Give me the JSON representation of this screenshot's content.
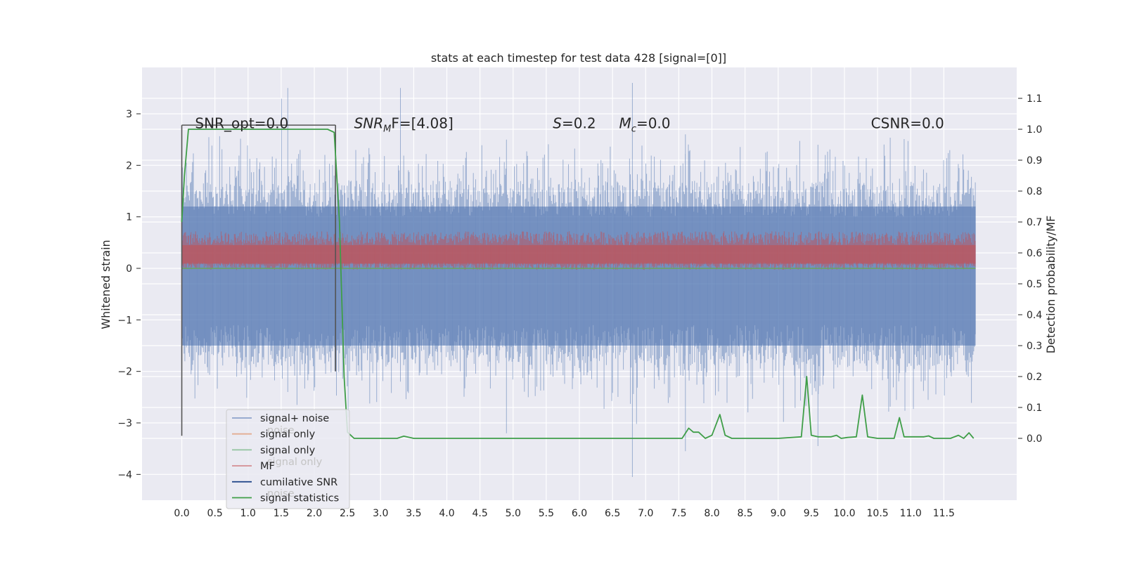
{
  "chart_data": {
    "type": "line",
    "title": "stats at each timestep for test data 428 [signal=[0]]",
    "xlabel": "",
    "ylabel": "Whitened strain",
    "ylabel_right": "Detection probability/MF",
    "xlim": [
      -0.6,
      12.6
    ],
    "ylim": [
      -4.5,
      3.9
    ],
    "ylim_right": [
      -0.2,
      1.2
    ],
    "x_ticks": [
      0.0,
      0.5,
      1.0,
      1.5,
      2.0,
      2.5,
      3.0,
      3.5,
      4.0,
      4.5,
      5.0,
      5.5,
      6.0,
      6.5,
      7.0,
      7.5,
      8.0,
      8.5,
      9.0,
      9.5,
      10.0,
      10.5,
      11.0,
      11.5
    ],
    "x_tick_labels": [
      "0.0",
      "0.5",
      "1.0",
      "1.5",
      "2.0",
      "2.5",
      "3.0",
      "3.5",
      "4.0",
      "4.5",
      "5.0",
      "5.5",
      "6.0",
      "6.5",
      "7.0",
      "7.5",
      "8.0",
      "8.5",
      "9.0",
      "9.5",
      "10.0",
      "10.5",
      "11.0",
      "11.5"
    ],
    "y_ticks": [
      -4,
      -3,
      -2,
      -1,
      0,
      1,
      2,
      3
    ],
    "y_tick_labels": [
      "−4",
      "−3",
      "−2",
      "−1",
      "0",
      "1",
      "2",
      "3"
    ],
    "y_right_ticks": [
      0.0,
      0.1,
      0.2,
      0.3,
      0.4,
      0.5,
      0.6,
      0.7,
      0.8,
      0.9,
      1.0,
      1.1
    ],
    "y_right_tick_labels": [
      "0.0",
      "0.1",
      "0.2",
      "0.3",
      "0.4",
      "0.5",
      "0.6",
      "0.7",
      "0.8",
      "0.9",
      "1.0",
      "1.1"
    ],
    "annotations": [
      {
        "name": "snr-opt",
        "prefix": "SNR_opt",
        "sub": "",
        "suffix": "=0.0",
        "italic": false,
        "x": 0.2,
        "y": 2.8
      },
      {
        "name": "snr-mf",
        "prefix": "SNR",
        "sub": "M",
        "suffix": "F=[4.08]",
        "italic": true,
        "x": 2.6,
        "y": 2.8
      },
      {
        "name": "s-value",
        "prefix": "S",
        "sub": "",
        "suffix": "=0.2",
        "italic": true,
        "x": 5.6,
        "y": 2.8
      },
      {
        "name": "mc-value",
        "prefix": "M",
        "sub": "c",
        "suffix": "=0.0",
        "italic": true,
        "x": 6.6,
        "y": 2.8
      },
      {
        "name": "csnr",
        "prefix": "CSNR",
        "sub": "",
        "suffix": "=0.0",
        "italic": false,
        "x": 10.4,
        "y": 2.8
      }
    ],
    "segment_marker": {
      "x_start": 0.0,
      "x_end": 2.32,
      "y_start": -3.25,
      "y_top": 2.78
    },
    "noise_band": {
      "x_start": 0.0,
      "x_end": 11.98,
      "upper_typical": 1.2,
      "lower_typical": -1.5,
      "max": 3.5,
      "min": -4.1
    },
    "mf_band": {
      "center_right": 0.6,
      "half_width_right": 0.05,
      "peak_right": 0.67
    },
    "series": [
      {
        "name": "signal+ noise",
        "color": "#4c72b0",
        "axis": "left",
        "style": "dense-noise"
      },
      {
        "name": "signal only",
        "color": "#dd8452",
        "axis": "left",
        "values_note": "flat at 0"
      },
      {
        "name": "signal only",
        "color": "#55a868",
        "axis": "left",
        "values_note": "flat at 0"
      },
      {
        "name": "MF",
        "color": "#c44e52",
        "axis": "right",
        "style": "dense-band"
      },
      {
        "name": "cumilative SNR",
        "color": "#274b8c",
        "axis": "right"
      },
      {
        "name": "signal statistics",
        "color": "#3f9e48",
        "axis": "right",
        "x": [
          0.0,
          0.04,
          0.1,
          0.2,
          0.5,
          1.0,
          1.5,
          2.0,
          2.2,
          2.3,
          2.38,
          2.45,
          2.5,
          2.6,
          3.0,
          3.25,
          3.35,
          3.5,
          4.0,
          5.0,
          6.0,
          7.0,
          7.55,
          7.65,
          7.72,
          7.8,
          7.9,
          8.0,
          8.12,
          8.2,
          8.3,
          9.0,
          9.35,
          9.43,
          9.5,
          9.6,
          9.8,
          9.88,
          9.95,
          10.05,
          10.18,
          10.27,
          10.35,
          10.5,
          10.75,
          10.83,
          10.9,
          11.0,
          11.2,
          11.27,
          11.35,
          11.6,
          11.72,
          11.8,
          11.88,
          11.95
        ],
        "y": [
          0.7,
          0.85,
          1.0,
          1.0,
          1.0,
          1.0,
          1.0,
          1.0,
          1.0,
          0.99,
          0.7,
          0.2,
          0.02,
          0.0,
          0.0,
          0.0,
          0.007,
          0.0,
          0.0,
          0.0,
          0.0,
          0.0,
          0.0,
          0.033,
          0.02,
          0.02,
          0.0,
          0.01,
          0.077,
          0.01,
          0.0,
          0.0,
          0.005,
          0.2,
          0.01,
          0.005,
          0.005,
          0.01,
          0.0,
          0.003,
          0.005,
          0.14,
          0.005,
          0.0,
          0.0,
          0.067,
          0.005,
          0.005,
          0.005,
          0.008,
          0.0,
          0.0,
          0.01,
          0.0,
          0.018,
          0.0
        ]
      }
    ],
    "legend": {
      "placement": "lower-left",
      "entries": [
        {
          "label": "signal+ noise",
          "color": "#4c72b0",
          "alpha": 0.6
        },
        {
          "label": "signal only",
          "color": "#dd8452",
          "alpha": 0.6
        },
        {
          "label": "signal only",
          "color": "#55a868",
          "alpha": 0.6
        },
        {
          "label": "MF",
          "color": "#c44e52",
          "alpha": 0.6
        },
        {
          "label": "cumilative SNR",
          "color": "#274b8c",
          "alpha": 1.0
        },
        {
          "label": "signal statistics",
          "color": "#3f9e48",
          "alpha": 1.0
        }
      ],
      "ghost_texts": [
        "noise",
        "signal only",
        "noise"
      ]
    },
    "grid": true
  }
}
